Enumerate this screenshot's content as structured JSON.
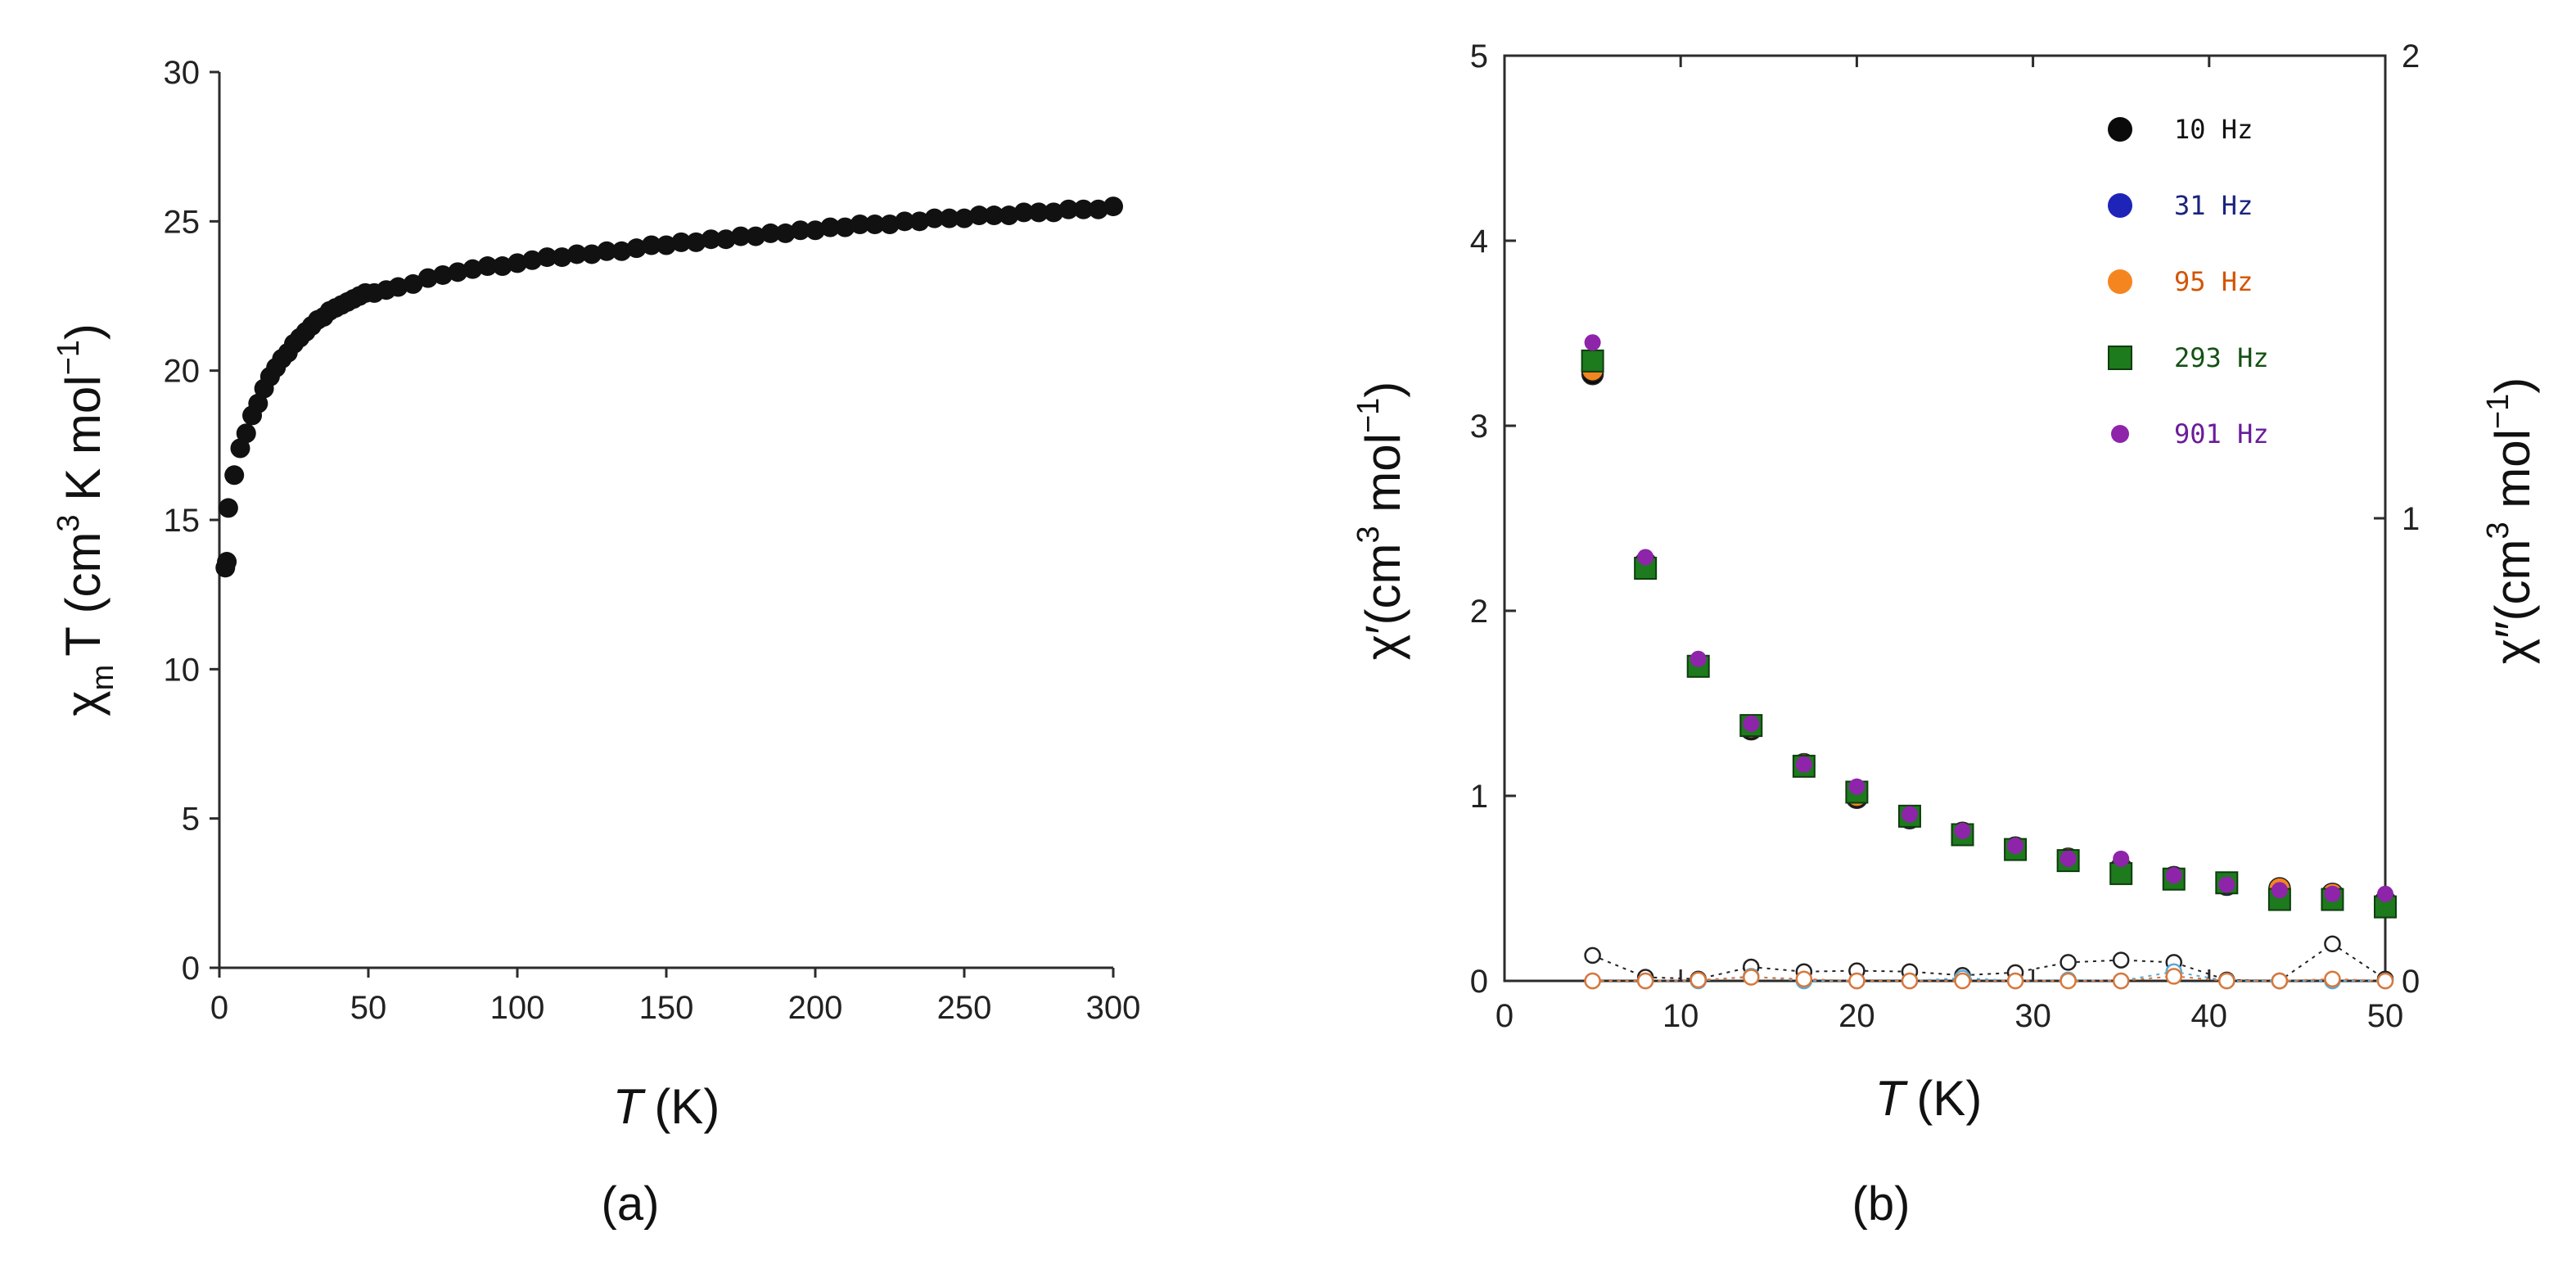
{
  "chart_data": [
    {
      "type": "scatter",
      "panel_label": "(a)",
      "xlabel_var": "T",
      "xlabel_unit": "(K)",
      "ylabel_var": "χ",
      "ylabel_sub": "m",
      "ylabel_rest": "T (cm",
      "ylabel_sup1": "3",
      "ylabel_mid": " K mol",
      "ylabel_sup2": "−1",
      "ylabel_end": ")",
      "xlim": [
        0,
        300
      ],
      "ylim": [
        0,
        30
      ],
      "x_ticks": [
        0,
        50,
        100,
        150,
        200,
        250,
        300
      ],
      "y_ticks": [
        0,
        5,
        10,
        15,
        20,
        25,
        30
      ],
      "series": [
        {
          "color": "#111111",
          "x": [
            2,
            2.5,
            3,
            5,
            7,
            9,
            11,
            13,
            15,
            17,
            19,
            21,
            23,
            25,
            27,
            29,
            31,
            33,
            35,
            37,
            39,
            41,
            43,
            45,
            47,
            49,
            52,
            56,
            60,
            65,
            70,
            75,
            80,
            85,
            90,
            95,
            100,
            105,
            110,
            115,
            120,
            125,
            130,
            135,
            140,
            145,
            150,
            155,
            160,
            165,
            170,
            175,
            180,
            185,
            190,
            195,
            200,
            205,
            210,
            215,
            220,
            225,
            230,
            235,
            240,
            245,
            250,
            255,
            260,
            265,
            270,
            275,
            280,
            285,
            290,
            295,
            300
          ],
          "y": [
            13.4,
            13.6,
            15.4,
            16.5,
            17.4,
            17.9,
            18.5,
            18.9,
            19.4,
            19.8,
            20.1,
            20.4,
            20.6,
            20.9,
            21.1,
            21.3,
            21.5,
            21.7,
            21.8,
            22.0,
            22.1,
            22.2,
            22.3,
            22.4,
            22.5,
            22.6,
            22.6,
            22.7,
            22.8,
            22.9,
            23.1,
            23.2,
            23.3,
            23.4,
            23.5,
            23.5,
            23.6,
            23.7,
            23.8,
            23.8,
            23.9,
            23.9,
            24.0,
            24.0,
            24.1,
            24.2,
            24.2,
            24.3,
            24.3,
            24.4,
            24.4,
            24.5,
            24.5,
            24.6,
            24.6,
            24.7,
            24.7,
            24.8,
            24.8,
            24.9,
            24.9,
            24.9,
            25.0,
            25.0,
            25.1,
            25.1,
            25.1,
            25.2,
            25.2,
            25.2,
            25.3,
            25.3,
            25.3,
            25.4,
            25.4,
            25.4,
            25.5
          ]
        }
      ]
    },
    {
      "type": "scatter",
      "panel_label": "(b)",
      "xlabel_var": "T",
      "xlabel_unit": "(K)",
      "ylabel_left": "χ′(cm",
      "ylabel_left_sup1": "3",
      "ylabel_left_mid": " mol",
      "ylabel_left_sup2": "−1",
      "ylabel_left_end": ")",
      "ylabel_right": "χ″(cm",
      "ylabel_right_sup1": "3",
      "ylabel_right_mid": " mol",
      "ylabel_right_sup2": "−1",
      "ylabel_right_end": ")",
      "xlim": [
        0,
        50
      ],
      "ylim_left": [
        0,
        5
      ],
      "ylim_right": [
        0,
        2
      ],
      "x_ticks": [
        0,
        10,
        20,
        30,
        40,
        50
      ],
      "y_ticks_left": [
        0,
        1,
        2,
        3,
        4,
        5
      ],
      "y_ticks_right": [
        0,
        1,
        2
      ],
      "legend_position": "top-right",
      "series": [
        {
          "name": "10 Hz",
          "marker": "circle",
          "color": "#0a0a0a",
          "text_color": "#111111",
          "x": [
            5,
            8,
            11,
            14,
            17,
            20,
            23,
            26,
            29,
            32,
            35,
            38,
            41,
            44,
            47,
            50
          ],
          "y": [
            3.28,
            2.24,
            1.7,
            1.36,
            1.17,
            0.99,
            0.88,
            0.79,
            0.71,
            0.65,
            0.6,
            0.56,
            0.53,
            0.45,
            0.44,
            0.4
          ],
          "y_imag": [
            0.055,
            0.008,
            0.004,
            0.03,
            0.02,
            0.022,
            0.02,
            0.012,
            0.018,
            0.04,
            0.045,
            0.04,
            0.002,
            0.0,
            0.08,
            0.004
          ]
        },
        {
          "name": "31 Hz",
          "marker": "circle",
          "color": "#1f24b8",
          "text_color": "#1a237e",
          "x": [
            5,
            8,
            11,
            14,
            17,
            20,
            23,
            26,
            29,
            32,
            35,
            38,
            41,
            44,
            47,
            50
          ],
          "y": [
            3.3,
            2.25,
            1.71,
            1.37,
            1.17,
            1.0,
            0.88,
            0.79,
            0.71,
            0.65,
            0.6,
            0.56,
            0.52,
            0.46,
            0.45,
            0.41
          ],
          "y_imag": [
            0.0,
            0.0,
            0.0,
            0.01,
            0.0,
            0.0,
            0.0,
            0.006,
            0.0,
            0.002,
            0.0,
            0.02,
            0.0,
            0.0,
            0.0,
            0.0
          ]
        },
        {
          "name": "95 Hz",
          "marker": "circle",
          "color": "#f5861f",
          "text_color": "#d35400",
          "x": [
            5,
            8,
            11,
            14,
            17,
            20,
            23,
            26,
            29,
            32,
            35,
            38,
            41,
            44,
            47,
            50
          ],
          "y": [
            3.3,
            2.26,
            1.71,
            1.37,
            1.17,
            1.0,
            0.89,
            0.8,
            0.72,
            0.66,
            0.61,
            0.56,
            0.53,
            0.5,
            0.47,
            0.43
          ],
          "y_imag": [
            0.0,
            0.0,
            0.002,
            0.008,
            0.004,
            0.0,
            0.0,
            0.0,
            0.0,
            0.0,
            0.0,
            0.01,
            0.0,
            0.0,
            0.004,
            0.0
          ]
        },
        {
          "name": "293 Hz",
          "marker": "square",
          "color": "#1d7a1d",
          "text_color": "#145214",
          "x": [
            5,
            8,
            11,
            14,
            17,
            20,
            23,
            26,
            29,
            32,
            35,
            38,
            41,
            44,
            47,
            50
          ],
          "y": [
            3.35,
            2.23,
            1.7,
            1.38,
            1.16,
            1.02,
            0.89,
            0.79,
            0.71,
            0.65,
            0.58,
            0.55,
            0.53,
            0.44,
            0.44,
            0.4
          ],
          "y_imag": []
        },
        {
          "name": "901 Hz",
          "marker": "circle-small",
          "color": "#8e24aa",
          "text_color": "#6a1b9a",
          "x": [
            5,
            8,
            11,
            14,
            17,
            20,
            23,
            26,
            29,
            32,
            35,
            38,
            41,
            44,
            47,
            50
          ],
          "y": [
            3.45,
            2.29,
            1.74,
            1.39,
            1.17,
            1.05,
            0.9,
            0.81,
            0.73,
            0.66,
            0.66,
            0.57,
            0.52,
            0.49,
            0.47,
            0.47
          ],
          "y_imag": []
        }
      ]
    }
  ]
}
